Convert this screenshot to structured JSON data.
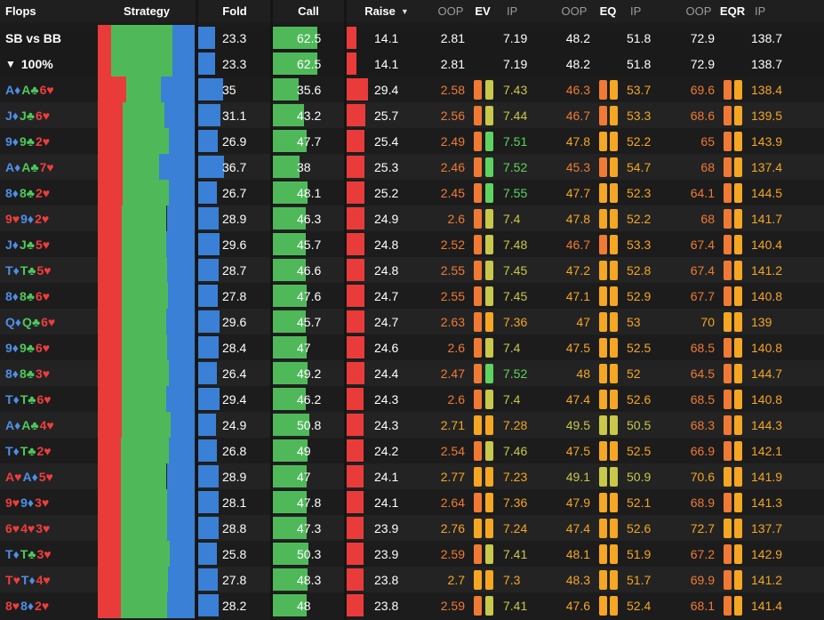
{
  "colors": {
    "fold": "#3a80d6",
    "call": "#4fb95a",
    "raise": "#ea3b3b",
    "spade": "#4e8ee8",
    "club": "#4fc75c",
    "heart": "#ef3d3d",
    "diamond": "#4e8ee8"
  },
  "headers": {
    "flops": "Flops",
    "strategy": "Strategy",
    "fold": "Fold",
    "call": "Call",
    "raise": "Raise",
    "sort_icon": "caret-down-icon",
    "oop1": "OOP",
    "ev": "EV",
    "ip1": "IP",
    "oop2": "OOP",
    "eq": "EQ",
    "ip2": "IP",
    "oop3": "OOP",
    "eqr": "EQR",
    "ip3": "IP"
  },
  "summary": [
    {
      "label": "SB vs BB",
      "icon": "",
      "fold": 23.3,
      "call": 62.5,
      "raise": 14.1,
      "ev_oop": "2.81",
      "ev_ip": "7.19",
      "eq_oop": "48.2",
      "eq_ip": "51.8",
      "eqr_oop": "72.9",
      "eqr_ip": "138.7"
    },
    {
      "label": "100%",
      "icon": "filter-icon",
      "fold": 23.3,
      "call": 62.5,
      "raise": 14.1,
      "ev_oop": "2.81",
      "ev_ip": "7.19",
      "eq_oop": "48.2",
      "eq_ip": "51.8",
      "eqr_oop": "72.9",
      "eqr_ip": "138.7"
    }
  ],
  "rows": [
    {
      "cards": [
        [
          "A",
          "d"
        ],
        [
          "A",
          "c"
        ],
        [
          "6",
          "h"
        ]
      ],
      "fold": 35,
      "call": 35.6,
      "raise": 29.4,
      "ev_oop": "2.58",
      "ev_ip": "7.43",
      "eq_oop": "46.3",
      "eq_ip": "53.7",
      "eqr_oop": "69.6",
      "eqr_ip": "138.4"
    },
    {
      "cards": [
        [
          "J",
          "d"
        ],
        [
          "J",
          "c"
        ],
        [
          "6",
          "h"
        ]
      ],
      "fold": 31.1,
      "call": 43.2,
      "raise": 25.7,
      "ev_oop": "2.56",
      "ev_ip": "7.44",
      "eq_oop": "46.7",
      "eq_ip": "53.3",
      "eqr_oop": "68.6",
      "eqr_ip": "139.5"
    },
    {
      "cards": [
        [
          "9",
          "d"
        ],
        [
          "9",
          "c"
        ],
        [
          "2",
          "h"
        ]
      ],
      "fold": 26.9,
      "call": 47.7,
      "raise": 25.4,
      "ev_oop": "2.49",
      "ev_ip": "7.51",
      "eq_oop": "47.8",
      "eq_ip": "52.2",
      "eqr_oop": "65",
      "eqr_ip": "143.9"
    },
    {
      "cards": [
        [
          "A",
          "d"
        ],
        [
          "A",
          "c"
        ],
        [
          "7",
          "h"
        ]
      ],
      "fold": 36.7,
      "call": 38,
      "raise": 25.3,
      "ev_oop": "2.46",
      "ev_ip": "7.52",
      "eq_oop": "45.3",
      "eq_ip": "54.7",
      "eqr_oop": "68",
      "eqr_ip": "137.4"
    },
    {
      "cards": [
        [
          "8",
          "d"
        ],
        [
          "8",
          "c"
        ],
        [
          "2",
          "h"
        ]
      ],
      "fold": 26.7,
      "call": 48.1,
      "raise": 25.2,
      "ev_oop": "2.45",
      "ev_ip": "7.55",
      "eq_oop": "47.7",
      "eq_ip": "52.3",
      "eqr_oop": "64.1",
      "eqr_ip": "144.5"
    },
    {
      "cards": [
        [
          "9",
          "h"
        ],
        [
          "9",
          "d"
        ],
        [
          "2",
          "h"
        ]
      ],
      "fold": 28.9,
      "call": 46.3,
      "raise": 24.9,
      "ev_oop": "2.6",
      "ev_ip": "7.4",
      "eq_oop": "47.8",
      "eq_ip": "52.2",
      "eqr_oop": "68",
      "eqr_ip": "141.7"
    },
    {
      "cards": [
        [
          "J",
          "d"
        ],
        [
          "J",
          "c"
        ],
        [
          "5",
          "h"
        ]
      ],
      "fold": 29.6,
      "call": 45.7,
      "raise": 24.8,
      "ev_oop": "2.52",
      "ev_ip": "7.48",
      "eq_oop": "46.7",
      "eq_ip": "53.3",
      "eqr_oop": "67.4",
      "eqr_ip": "140.4"
    },
    {
      "cards": [
        [
          "T",
          "d"
        ],
        [
          "T",
          "c"
        ],
        [
          "5",
          "h"
        ]
      ],
      "fold": 28.7,
      "call": 46.6,
      "raise": 24.8,
      "ev_oop": "2.55",
      "ev_ip": "7.45",
      "eq_oop": "47.2",
      "eq_ip": "52.8",
      "eqr_oop": "67.4",
      "eqr_ip": "141.2"
    },
    {
      "cards": [
        [
          "8",
          "d"
        ],
        [
          "8",
          "c"
        ],
        [
          "6",
          "h"
        ]
      ],
      "fold": 27.8,
      "call": 47.6,
      "raise": 24.7,
      "ev_oop": "2.55",
      "ev_ip": "7.45",
      "eq_oop": "47.1",
      "eq_ip": "52.9",
      "eqr_oop": "67.7",
      "eqr_ip": "140.8"
    },
    {
      "cards": [
        [
          "Q",
          "d"
        ],
        [
          "Q",
          "c"
        ],
        [
          "6",
          "h"
        ]
      ],
      "fold": 29.6,
      "call": 45.7,
      "raise": 24.7,
      "ev_oop": "2.63",
      "ev_ip": "7.36",
      "eq_oop": "47",
      "eq_ip": "53",
      "eqr_oop": "70",
      "eqr_ip": "139"
    },
    {
      "cards": [
        [
          "9",
          "d"
        ],
        [
          "9",
          "c"
        ],
        [
          "6",
          "h"
        ]
      ],
      "fold": 28.4,
      "call": 47,
      "raise": 24.6,
      "ev_oop": "2.6",
      "ev_ip": "7.4",
      "eq_oop": "47.5",
      "eq_ip": "52.5",
      "eqr_oop": "68.5",
      "eqr_ip": "140.8"
    },
    {
      "cards": [
        [
          "8",
          "d"
        ],
        [
          "8",
          "c"
        ],
        [
          "3",
          "h"
        ]
      ],
      "fold": 26.4,
      "call": 49.2,
      "raise": 24.4,
      "ev_oop": "2.47",
      "ev_ip": "7.52",
      "eq_oop": "48",
      "eq_ip": "52",
      "eqr_oop": "64.5",
      "eqr_ip": "144.7"
    },
    {
      "cards": [
        [
          "T",
          "d"
        ],
        [
          "T",
          "c"
        ],
        [
          "6",
          "h"
        ]
      ],
      "fold": 29.4,
      "call": 46.2,
      "raise": 24.3,
      "ev_oop": "2.6",
      "ev_ip": "7.4",
      "eq_oop": "47.4",
      "eq_ip": "52.6",
      "eqr_oop": "68.5",
      "eqr_ip": "140.8"
    },
    {
      "cards": [
        [
          "A",
          "d"
        ],
        [
          "A",
          "c"
        ],
        [
          "4",
          "h"
        ]
      ],
      "fold": 24.9,
      "call": 50.8,
      "raise": 24.3,
      "ev_oop": "2.71",
      "ev_ip": "7.28",
      "eq_oop": "49.5",
      "eq_ip": "50.5",
      "eqr_oop": "68.3",
      "eqr_ip": "144.3"
    },
    {
      "cards": [
        [
          "T",
          "d"
        ],
        [
          "T",
          "c"
        ],
        [
          "2",
          "h"
        ]
      ],
      "fold": 26.8,
      "call": 49,
      "raise": 24.2,
      "ev_oop": "2.54",
      "ev_ip": "7.46",
      "eq_oop": "47.5",
      "eq_ip": "52.5",
      "eqr_oop": "66.9",
      "eqr_ip": "142.1"
    },
    {
      "cards": [
        [
          "A",
          "h"
        ],
        [
          "A",
          "d"
        ],
        [
          "5",
          "h"
        ]
      ],
      "fold": 28.9,
      "call": 47,
      "raise": 24.1,
      "ev_oop": "2.77",
      "ev_ip": "7.23",
      "eq_oop": "49.1",
      "eq_ip": "50.9",
      "eqr_oop": "70.6",
      "eqr_ip": "141.9"
    },
    {
      "cards": [
        [
          "9",
          "h"
        ],
        [
          "9",
          "d"
        ],
        [
          "3",
          "h"
        ]
      ],
      "fold": 28.1,
      "call": 47.8,
      "raise": 24.1,
      "ev_oop": "2.64",
      "ev_ip": "7.36",
      "eq_oop": "47.9",
      "eq_ip": "52.1",
      "eqr_oop": "68.9",
      "eqr_ip": "141.3"
    },
    {
      "cards": [
        [
          "6",
          "h"
        ],
        [
          "4",
          "h"
        ],
        [
          "3",
          "h"
        ]
      ],
      "fold": 28.8,
      "call": 47.3,
      "raise": 23.9,
      "ev_oop": "2.76",
      "ev_ip": "7.24",
      "eq_oop": "47.4",
      "eq_ip": "52.6",
      "eqr_oop": "72.7",
      "eqr_ip": "137.7"
    },
    {
      "cards": [
        [
          "T",
          "d"
        ],
        [
          "T",
          "c"
        ],
        [
          "3",
          "h"
        ]
      ],
      "fold": 25.8,
      "call": 50.3,
      "raise": 23.9,
      "ev_oop": "2.59",
      "ev_ip": "7.41",
      "eq_oop": "48.1",
      "eq_ip": "51.9",
      "eqr_oop": "67.2",
      "eqr_ip": "142.9"
    },
    {
      "cards": [
        [
          "T",
          "h"
        ],
        [
          "T",
          "d"
        ],
        [
          "4",
          "h"
        ]
      ],
      "fold": 27.8,
      "call": 48.3,
      "raise": 23.8,
      "ev_oop": "2.7",
      "ev_ip": "7.3",
      "eq_oop": "48.3",
      "eq_ip": "51.7",
      "eqr_oop": "69.9",
      "eqr_ip": "141.2"
    },
    {
      "cards": [
        [
          "8",
          "h"
        ],
        [
          "8",
          "d"
        ],
        [
          "2",
          "h"
        ]
      ],
      "fold": 28.2,
      "call": 48,
      "raise": 23.8,
      "ev_oop": "2.59",
      "ev_ip": "7.41",
      "eq_oop": "47.6",
      "eq_ip": "52.4",
      "eqr_oop": "68.1",
      "eqr_ip": "141.4"
    }
  ]
}
